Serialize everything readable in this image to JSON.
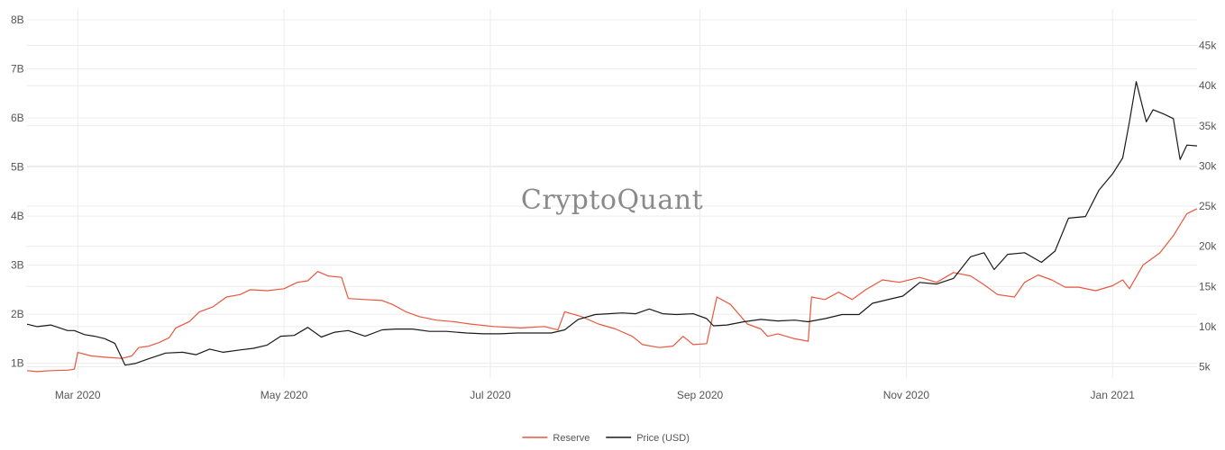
{
  "watermark": "CryptoQuant",
  "chart_data": {
    "type": "line",
    "x_ticks": [
      "2020-03-01",
      "2020-05-01",
      "2020-07-01",
      "2020-09-01",
      "2020-11-01",
      "2021-01-01"
    ],
    "x_tick_labels": [
      "Mar 2020",
      "May 2020",
      "Jul 2020",
      "Sep 2020",
      "Nov 2020",
      "Jan 2021"
    ],
    "xlim": [
      "2020-02-15",
      "2021-01-26"
    ],
    "y_left": {
      "ticks": [
        1,
        2,
        3,
        4,
        5,
        6,
        7,
        8
      ],
      "tick_labels": [
        "1B",
        "2B",
        "3B",
        "4B",
        "5B",
        "6B",
        "7B",
        "8B"
      ],
      "ylim": [
        0.7,
        8
      ],
      "unit": "B"
    },
    "y_right": {
      "ticks": [
        5,
        10,
        15,
        20,
        25,
        30,
        35,
        40,
        45
      ],
      "tick_labels": [
        "5k",
        "10k",
        "15k",
        "20k",
        "25k",
        "30k",
        "35k",
        "40k",
        "45k"
      ],
      "ylim": [
        3.6,
        48.2
      ],
      "unit": "k"
    },
    "grid": true,
    "legend": {
      "position": "bottom-center"
    },
    "series": [
      {
        "name": "Reserve",
        "axis": "left",
        "color": "#e8573e",
        "points": [
          [
            "2020-02-15",
            0.85
          ],
          [
            "2020-02-18",
            0.83
          ],
          [
            "2020-02-22",
            0.85
          ],
          [
            "2020-02-27",
            0.86
          ],
          [
            "2020-02-29",
            0.88
          ],
          [
            "2020-03-01",
            1.22
          ],
          [
            "2020-03-05",
            1.15
          ],
          [
            "2020-03-10",
            1.12
          ],
          [
            "2020-03-14",
            1.1
          ],
          [
            "2020-03-17",
            1.15
          ],
          [
            "2020-03-19",
            1.32
          ],
          [
            "2020-03-22",
            1.35
          ],
          [
            "2020-03-25",
            1.42
          ],
          [
            "2020-03-28",
            1.52
          ],
          [
            "2020-03-30",
            1.72
          ],
          [
            "2020-04-03",
            1.85
          ],
          [
            "2020-04-06",
            2.05
          ],
          [
            "2020-04-10",
            2.15
          ],
          [
            "2020-04-14",
            2.35
          ],
          [
            "2020-04-18",
            2.4
          ],
          [
            "2020-04-21",
            2.5
          ],
          [
            "2020-04-26",
            2.48
          ],
          [
            "2020-05-01",
            2.52
          ],
          [
            "2020-05-05",
            2.65
          ],
          [
            "2020-05-08",
            2.68
          ],
          [
            "2020-05-11",
            2.87
          ],
          [
            "2020-05-14",
            2.78
          ],
          [
            "2020-05-18",
            2.75
          ],
          [
            "2020-05-20",
            2.32
          ],
          [
            "2020-05-25",
            2.3
          ],
          [
            "2020-05-30",
            2.28
          ],
          [
            "2020-06-02",
            2.2
          ],
          [
            "2020-06-06",
            2.05
          ],
          [
            "2020-06-10",
            1.95
          ],
          [
            "2020-06-15",
            1.88
          ],
          [
            "2020-06-20",
            1.85
          ],
          [
            "2020-06-25",
            1.8
          ],
          [
            "2020-07-02",
            1.75
          ],
          [
            "2020-07-10",
            1.72
          ],
          [
            "2020-07-17",
            1.75
          ],
          [
            "2020-07-21",
            1.68
          ],
          [
            "2020-07-23",
            2.05
          ],
          [
            "2020-07-28",
            1.95
          ],
          [
            "2020-08-02",
            1.8
          ],
          [
            "2020-08-07",
            1.7
          ],
          [
            "2020-08-12",
            1.55
          ],
          [
            "2020-08-15",
            1.38
          ],
          [
            "2020-08-20",
            1.32
          ],
          [
            "2020-08-24",
            1.35
          ],
          [
            "2020-08-27",
            1.55
          ],
          [
            "2020-08-30",
            1.38
          ],
          [
            "2020-09-03",
            1.4
          ],
          [
            "2020-09-06",
            2.35
          ],
          [
            "2020-09-10",
            2.2
          ],
          [
            "2020-09-15",
            1.8
          ],
          [
            "2020-09-19",
            1.7
          ],
          [
            "2020-09-21",
            1.55
          ],
          [
            "2020-09-24",
            1.6
          ],
          [
            "2020-09-29",
            1.5
          ],
          [
            "2020-10-03",
            1.45
          ],
          [
            "2020-10-04",
            2.35
          ],
          [
            "2020-10-08",
            2.3
          ],
          [
            "2020-10-12",
            2.45
          ],
          [
            "2020-10-16",
            2.3
          ],
          [
            "2020-10-20",
            2.5
          ],
          [
            "2020-10-25",
            2.7
          ],
          [
            "2020-10-30",
            2.65
          ],
          [
            "2020-11-05",
            2.75
          ],
          [
            "2020-11-10",
            2.65
          ],
          [
            "2020-11-15",
            2.85
          ],
          [
            "2020-11-20",
            2.78
          ],
          [
            "2020-11-24",
            2.6
          ],
          [
            "2020-11-28",
            2.4
          ],
          [
            "2020-12-03",
            2.35
          ],
          [
            "2020-12-06",
            2.65
          ],
          [
            "2020-12-10",
            2.8
          ],
          [
            "2020-12-14",
            2.7
          ],
          [
            "2020-12-18",
            2.55
          ],
          [
            "2020-12-22",
            2.55
          ],
          [
            "2020-12-27",
            2.48
          ],
          [
            "2021-01-01",
            2.58
          ],
          [
            "2021-01-04",
            2.7
          ],
          [
            "2021-01-06",
            2.52
          ],
          [
            "2021-01-10",
            3.0
          ],
          [
            "2021-01-15",
            3.25
          ],
          [
            "2021-01-19",
            3.6
          ],
          [
            "2021-01-23",
            4.05
          ],
          [
            "2021-01-26",
            4.15
          ]
        ]
      },
      {
        "name": "Price (USD)",
        "axis": "right",
        "color": "#1a1a1a",
        "points": [
          [
            "2020-02-15",
            10.3
          ],
          [
            "2020-02-18",
            10.0
          ],
          [
            "2020-02-22",
            10.2
          ],
          [
            "2020-02-27",
            9.5
          ],
          [
            "2020-02-29",
            9.5
          ],
          [
            "2020-03-03",
            9.0
          ],
          [
            "2020-03-06",
            8.8
          ],
          [
            "2020-03-09",
            8.5
          ],
          [
            "2020-03-12",
            7.9
          ],
          [
            "2020-03-15",
            5.2
          ],
          [
            "2020-03-18",
            5.4
          ],
          [
            "2020-03-22",
            6.0
          ],
          [
            "2020-03-27",
            6.7
          ],
          [
            "2020-04-01",
            6.8
          ],
          [
            "2020-04-05",
            6.5
          ],
          [
            "2020-04-09",
            7.2
          ],
          [
            "2020-04-13",
            6.8
          ],
          [
            "2020-04-18",
            7.1
          ],
          [
            "2020-04-22",
            7.3
          ],
          [
            "2020-04-26",
            7.7
          ],
          [
            "2020-04-30",
            8.8
          ],
          [
            "2020-05-04",
            8.9
          ],
          [
            "2020-05-08",
            9.9
          ],
          [
            "2020-05-12",
            8.7
          ],
          [
            "2020-05-16",
            9.3
          ],
          [
            "2020-05-20",
            9.5
          ],
          [
            "2020-05-25",
            8.8
          ],
          [
            "2020-05-30",
            9.6
          ],
          [
            "2020-06-03",
            9.7
          ],
          [
            "2020-06-08",
            9.7
          ],
          [
            "2020-06-13",
            9.4
          ],
          [
            "2020-06-18",
            9.4
          ],
          [
            "2020-06-24",
            9.2
          ],
          [
            "2020-06-29",
            9.1
          ],
          [
            "2020-07-04",
            9.1
          ],
          [
            "2020-07-09",
            9.2
          ],
          [
            "2020-07-14",
            9.2
          ],
          [
            "2020-07-19",
            9.2
          ],
          [
            "2020-07-23",
            9.6
          ],
          [
            "2020-07-27",
            10.9
          ],
          [
            "2020-08-01",
            11.5
          ],
          [
            "2020-08-05",
            11.6
          ],
          [
            "2020-08-09",
            11.7
          ],
          [
            "2020-08-13",
            11.6
          ],
          [
            "2020-08-17",
            12.2
          ],
          [
            "2020-08-21",
            11.6
          ],
          [
            "2020-08-25",
            11.5
          ],
          [
            "2020-08-30",
            11.6
          ],
          [
            "2020-09-03",
            11.0
          ],
          [
            "2020-09-05",
            10.1
          ],
          [
            "2020-09-09",
            10.2
          ],
          [
            "2020-09-14",
            10.6
          ],
          [
            "2020-09-19",
            10.9
          ],
          [
            "2020-09-24",
            10.7
          ],
          [
            "2020-09-29",
            10.8
          ],
          [
            "2020-10-03",
            10.6
          ],
          [
            "2020-10-08",
            11.0
          ],
          [
            "2020-10-13",
            11.5
          ],
          [
            "2020-10-18",
            11.5
          ],
          [
            "2020-10-22",
            12.9
          ],
          [
            "2020-10-27",
            13.4
          ],
          [
            "2020-10-31",
            13.8
          ],
          [
            "2020-11-05",
            15.5
          ],
          [
            "2020-11-10",
            15.3
          ],
          [
            "2020-11-15",
            16.0
          ],
          [
            "2020-11-20",
            18.7
          ],
          [
            "2020-11-24",
            19.2
          ],
          [
            "2020-11-27",
            17.1
          ],
          [
            "2020-12-01",
            19.0
          ],
          [
            "2020-12-06",
            19.2
          ],
          [
            "2020-12-11",
            18.0
          ],
          [
            "2020-12-15",
            19.4
          ],
          [
            "2020-12-19",
            23.5
          ],
          [
            "2020-12-24",
            23.7
          ],
          [
            "2020-12-28",
            27.0
          ],
          [
            "2021-01-01",
            29.0
          ],
          [
            "2021-01-04",
            31.0
          ],
          [
            "2021-01-06",
            35.5
          ],
          [
            "2021-01-08",
            40.5
          ],
          [
            "2021-01-11",
            35.5
          ],
          [
            "2021-01-13",
            37.0
          ],
          [
            "2021-01-16",
            36.5
          ],
          [
            "2021-01-19",
            35.9
          ],
          [
            "2021-01-21",
            30.8
          ],
          [
            "2021-01-23",
            32.6
          ],
          [
            "2021-01-26",
            32.5
          ]
        ]
      }
    ]
  }
}
